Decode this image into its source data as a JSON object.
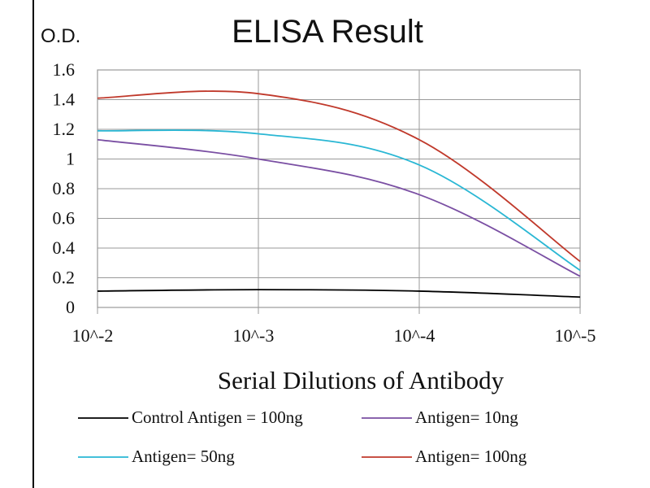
{
  "chart_data": {
    "type": "line",
    "title": "ELISA Result",
    "ylabel": "O.D.",
    "xlabel": "Serial Dilutions  of Antibody",
    "categories": [
      "10^-2",
      "10^-3",
      "10^-4",
      "10^-5"
    ],
    "ylim": [
      0,
      1.6
    ],
    "yticks": [
      "0",
      "0.2",
      "0.4",
      "0.6",
      "0.8",
      "1",
      "1.2",
      "1.4",
      "1.6"
    ],
    "grid": true,
    "legend_position": "bottom",
    "series": [
      {
        "name": "Control Antigen = 100ng",
        "color": "#000000",
        "values": [
          0.11,
          0.12,
          0.11,
          0.07
        ]
      },
      {
        "name": "Antigen= 10ng",
        "color": "#7a4fa3",
        "values": [
          1.13,
          1.0,
          0.76,
          0.21
        ]
      },
      {
        "name": "Antigen= 50ng",
        "color": "#2ab7d4",
        "values": [
          1.19,
          1.17,
          0.96,
          0.25
        ]
      },
      {
        "name": "Antigen= 100ng",
        "color": "#c0392b",
        "values": [
          1.41,
          1.44,
          1.13,
          0.31
        ]
      }
    ]
  }
}
